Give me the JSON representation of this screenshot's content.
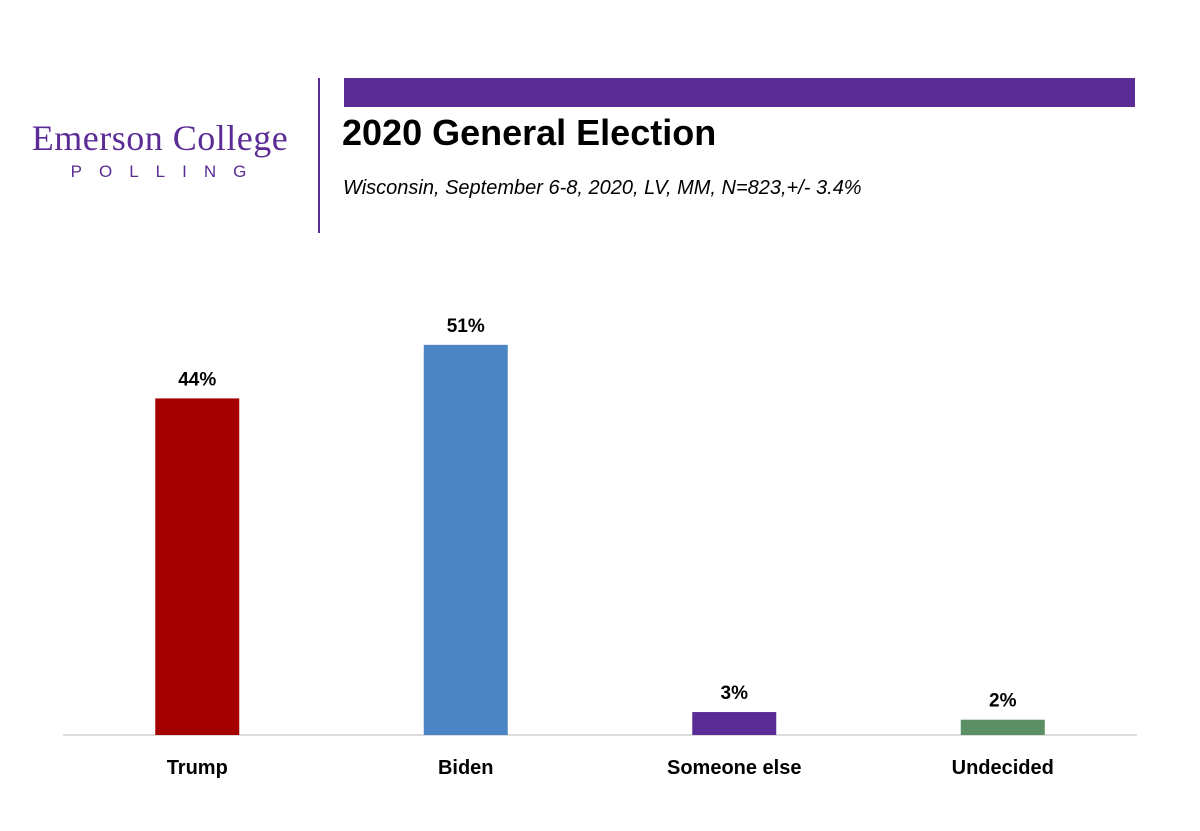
{
  "brand": {
    "name": "Emerson College",
    "sub": "POLLING",
    "color": "#5B2C95"
  },
  "header": {
    "title": "2020 General Election",
    "subtitle": "Wisconsin, September 6-8, 2020, LV, MM,  N=823,+/-  3.4%"
  },
  "chart_data": {
    "type": "bar",
    "title": "2020 General Election",
    "subtitle": "Wisconsin, September 6-8, 2020, LV, MM,  N=823,+/-  3.4%",
    "categories": [
      "Trump",
      "Biden",
      "Someone else",
      "Undecided"
    ],
    "values": [
      44,
      51,
      3,
      2
    ],
    "value_labels": [
      "44%",
      "51%",
      "3%",
      "2%"
    ],
    "colors": [
      "#A50000",
      "#4A84C4",
      "#5B2C95",
      "#5A8F63"
    ],
    "xlabel": "",
    "ylabel": "",
    "ylim": [
      0,
      60
    ],
    "grid": false,
    "legend": "none"
  }
}
